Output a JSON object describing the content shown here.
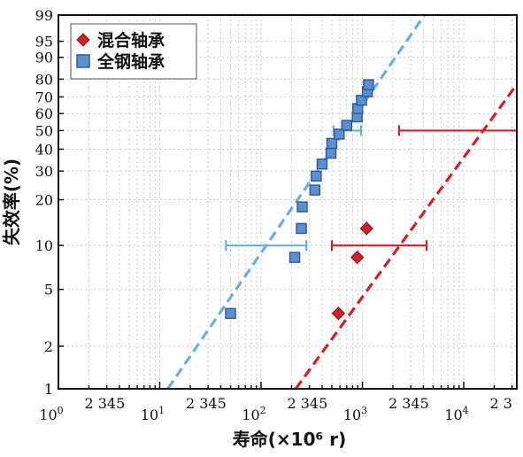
{
  "colors": {
    "hybrid": "#cc2229",
    "steel_fill": "#5b8fcf",
    "steel_stroke": "#2f5f99",
    "steel_line": "#6aaee0",
    "grid": "#c9c9c9"
  },
  "chart_data": {
    "type": "scatter",
    "xlabel": "寿命(×10⁶ r)",
    "ylabel": "失效率(%)",
    "x_scale": "log",
    "y_scale": "weibull",
    "xlim": [
      1,
      2000000
    ],
    "ylim": [
      1,
      99
    ],
    "grid": true,
    "legend_position": "top-left",
    "x_decade_labels": [
      {
        "base": "10",
        "exp": "0",
        "value": 1
      },
      {
        "base": "10",
        "exp": "1",
        "value": 10
      },
      {
        "base": "10",
        "exp": "2",
        "value": 100
      },
      {
        "base": "10",
        "exp": "3",
        "value": 1000
      },
      {
        "base": "10",
        "exp": "4",
        "value": 10000
      }
    ],
    "x_minor_labels": [
      {
        "decade": 0,
        "text": "2 345"
      },
      {
        "decade": 1,
        "text": "2 345"
      },
      {
        "decade": 2,
        "text": "2 345"
      },
      {
        "decade": 3,
        "text": "2 345"
      },
      {
        "decade": 4,
        "text": "2 3"
      }
    ],
    "y_ticks": [
      1,
      2,
      5,
      10,
      20,
      30,
      40,
      50,
      60,
      70,
      80,
      90,
      95,
      99
    ],
    "series": [
      {
        "name": "混合轴承",
        "marker": "diamond",
        "color": "#cc2229",
        "points": [
          {
            "x": 580,
            "y": 3.4
          },
          {
            "x": 890,
            "y": 8.3
          },
          {
            "x": 1100,
            "y": 13
          }
        ],
        "fit_line": {
          "x": [
            220,
            105000
          ],
          "y": [
            1,
            99
          ]
        },
        "intervals": [
          {
            "y": 10,
            "x_low": 500,
            "x_high": 4300
          },
          {
            "y": 50,
            "x_low": 2300,
            "x_high": 1500000
          }
        ]
      },
      {
        "name": "全钢轴承",
        "marker": "square",
        "color": "#5b8fcf",
        "points": [
          {
            "x": 50,
            "y": 3.4
          },
          {
            "x": 215,
            "y": 8.3
          },
          {
            "x": 250,
            "y": 13
          },
          {
            "x": 255,
            "y": 18
          },
          {
            "x": 340,
            "y": 23
          },
          {
            "x": 350,
            "y": 28
          },
          {
            "x": 400,
            "y": 33
          },
          {
            "x": 490,
            "y": 38
          },
          {
            "x": 500,
            "y": 43
          },
          {
            "x": 590,
            "y": 48
          },
          {
            "x": 700,
            "y": 53
          },
          {
            "x": 890,
            "y": 58
          },
          {
            "x": 900,
            "y": 63
          },
          {
            "x": 980,
            "y": 68
          },
          {
            "x": 1120,
            "y": 73
          },
          {
            "x": 1150,
            "y": 77
          }
        ],
        "fit_line": {
          "x": [
            12,
            4100
          ],
          "y": [
            1,
            99
          ]
        },
        "intervals": [
          {
            "y": 10,
            "x_low": 45,
            "x_high": 280
          },
          {
            "y": 50,
            "x_low": 520,
            "x_high": 970
          }
        ]
      }
    ]
  }
}
